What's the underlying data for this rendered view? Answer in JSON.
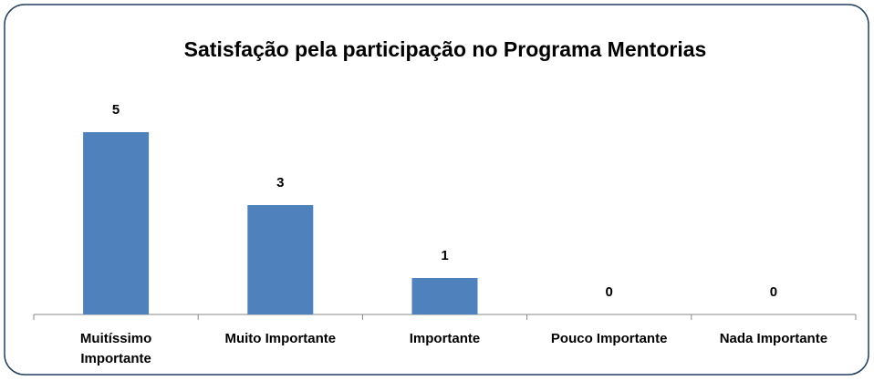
{
  "chart_data": {
    "type": "bar",
    "title": "Satisfação pela participação no Programa Mentorias",
    "categories": [
      "Muitíssimo Importante",
      "Muito Importante",
      "Importante",
      "Pouco Importante",
      "Nada Importante"
    ],
    "values": [
      5,
      3,
      1,
      0,
      0
    ],
    "color": "#4f81bd"
  }
}
